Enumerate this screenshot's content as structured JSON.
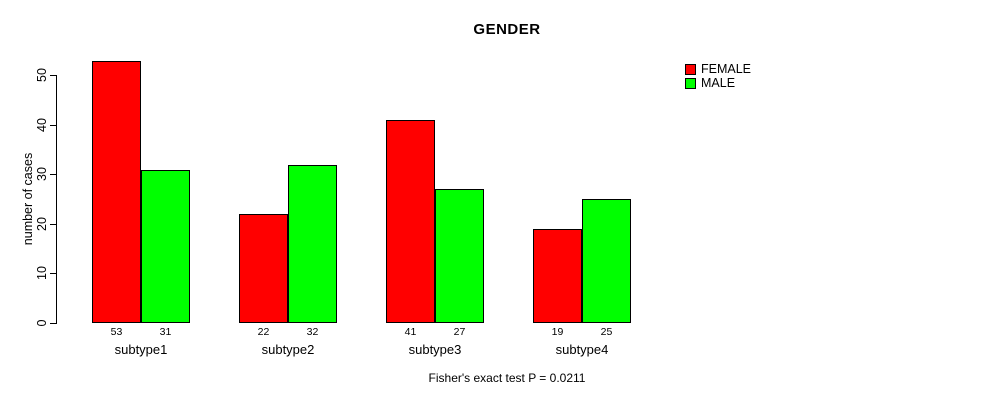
{
  "chart_data": {
    "type": "bar",
    "title": "GENDER",
    "ylabel": "number of cases",
    "subtitle": "Fisher's exact test P = 0.0211",
    "categories": [
      "subtype1",
      "subtype2",
      "subtype3",
      "subtype4"
    ],
    "series": [
      {
        "name": "FEMALE",
        "color": "#ff0000",
        "values": [
          53,
          22,
          41,
          19
        ]
      },
      {
        "name": "MALE",
        "color": "#00ff00",
        "values": [
          31,
          32,
          27,
          25
        ]
      }
    ],
    "ylim": [
      0,
      50
    ],
    "yticks": [
      0,
      10,
      20,
      30,
      40,
      50
    ],
    "grid": false,
    "legend_position": "top-right",
    "bar_value_labels": true,
    "bar_border_color": "#000000",
    "background_color": "#ffffff"
  }
}
